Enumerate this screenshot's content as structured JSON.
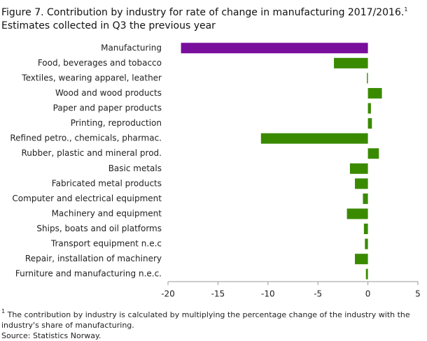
{
  "chart_data": {
    "type": "bar",
    "orientation": "horizontal",
    "title": "Figure 7. Contribution by industry for rate of change in manufacturing  2017/2016.",
    "title_note_marker": "1",
    "subtitle": "Estimates collected in Q3 the previous year",
    "categories": [
      "Manufacturing",
      "Food, beverages and tobacco",
      "Textiles, wearing apparel, leather",
      "Wood and wood products",
      "Paper and paper products",
      "Printing, reproduction",
      "Refined petro., chemicals, pharmac.",
      "Rubber, plastic and mineral prod.",
      "Basic metals",
      "Fabricated metal products",
      "Computer and electrical equipment",
      "Machinery and equipment",
      "Ships, boats and oil platforms",
      "Transport equipment n.e.c",
      "Repair, installation of machinery",
      "Furniture and manufacturing n.e.c."
    ],
    "values": [
      -18.7,
      -3.4,
      -0.1,
      1.4,
      0.3,
      0.4,
      -10.7,
      1.1,
      -1.8,
      -1.3,
      -0.5,
      -2.1,
      -0.4,
      -0.3,
      -1.3,
      -0.2
    ],
    "colors": [
      "#7a0e9c",
      "#3a8a00",
      "#3a8a00",
      "#3a8a00",
      "#3a8a00",
      "#3a8a00",
      "#3a8a00",
      "#3a8a00",
      "#3a8a00",
      "#3a8a00",
      "#3a8a00",
      "#3a8a00",
      "#3a8a00",
      "#3a8a00",
      "#3a8a00",
      "#3a8a00"
    ],
    "xlim": [
      -20,
      5
    ],
    "xticks": [
      -20,
      -15,
      -10,
      -5,
      0,
      5
    ],
    "footnote_marker": "1",
    "footnote": "The contribution by industry is calculated by multiplying the percentage change of the industry with the industry's share of manufacturing.",
    "source": "Source: Statistics Norway."
  }
}
